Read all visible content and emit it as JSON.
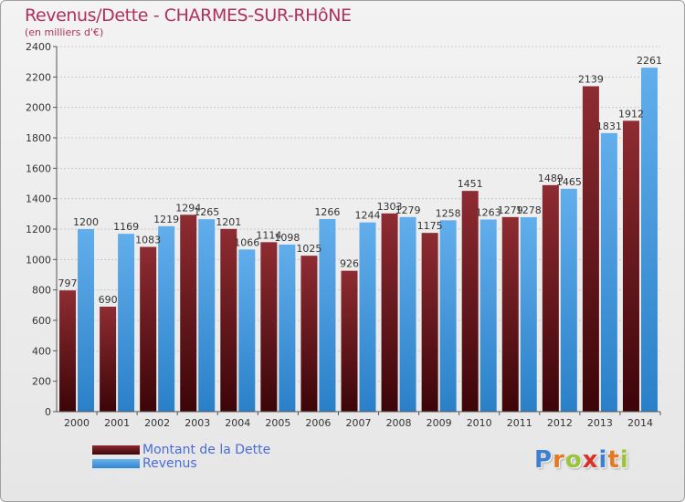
{
  "chart_data": {
    "type": "bar",
    "title": "Revenus/Dette - CHARMES-SUR-RHôNE",
    "subtitle": "(en milliers d'€)",
    "xlabel": "",
    "ylabel": "",
    "ylim": [
      0,
      2400
    ],
    "yticks": [
      "0",
      "200",
      "400",
      "600",
      "800",
      "1000",
      "1200",
      "1400",
      "1600",
      "1800",
      "2000",
      "2200",
      "2400"
    ],
    "categories": [
      "2000",
      "2001",
      "2002",
      "2003",
      "2004",
      "2005",
      "2006",
      "2007",
      "2008",
      "2009",
      "2010",
      "2011",
      "2012",
      "2013",
      "2014"
    ],
    "series": [
      {
        "name": "Montant de la Dette",
        "values": [
          797,
          690,
          1083,
          1294,
          1201,
          1114,
          1025,
          926,
          1303,
          1175,
          1451,
          1279,
          1489,
          2139,
          1912
        ],
        "labels": [
          "797",
          "690",
          "1083",
          "1294",
          "1201",
          "1114",
          "1025",
          "926",
          "1303",
          "1175",
          "1451",
          "1279",
          "1489",
          "2139",
          "1912"
        ],
        "color": "#7a1e24"
      },
      {
        "name": "Revenus",
        "values": [
          1200,
          1169,
          1219,
          1265,
          1066,
          1098,
          1266,
          1244,
          1279,
          1258,
          1263,
          1278,
          1465,
          1831,
          2261
        ],
        "labels": [
          "1200",
          "1169",
          "1219",
          "1265",
          "1066",
          "1098",
          "1266",
          "1244",
          "1279",
          "1258",
          "1263",
          "1278",
          "1465",
          "1831",
          "2261"
        ],
        "color": "#4aa0e6"
      }
    ],
    "legend": {
      "position": "bottom-left"
    }
  },
  "legend": {
    "dette_label": "Montant de la Dette",
    "revenus_label": "Revenus"
  },
  "logo": {
    "letters": [
      "P",
      "r",
      "o",
      "x",
      "i",
      "t",
      "i"
    ],
    "colors": [
      "#3d7fd1",
      "#e07a23",
      "#9cc43a",
      "#d9302a",
      "#3d7fd1",
      "#e07a23",
      "#9cc43a"
    ]
  }
}
